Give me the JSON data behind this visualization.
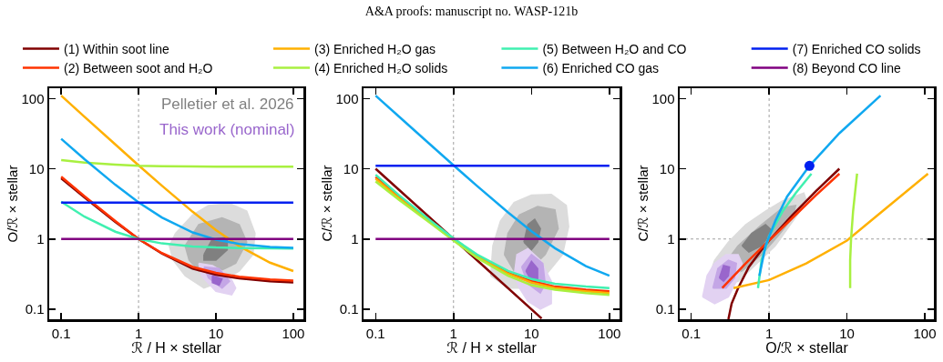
{
  "chart_data": [
    {
      "type": "line",
      "xlabel": "ℛ / H × stellar",
      "ylabel": "O/ℛ × stellar",
      "log": "xy",
      "grid": false,
      "legend": "top",
      "marker": "none",
      "line_style": "solid",
      "xlim": [
        0.07,
        135
      ],
      "ylim": [
        0.072,
        140
      ],
      "xticks": [
        0.1,
        1,
        10,
        100
      ],
      "yticks": [
        0.1,
        1,
        10,
        100
      ],
      "ref_lines": [
        {
          "axis": "x",
          "value": 1,
          "color": "#a0a0a0",
          "line_style": "dotted"
        }
      ],
      "x": [
        0.1,
        0.2,
        0.5,
        1,
        2,
        5,
        10,
        20,
        50,
        100
      ],
      "series": [
        {
          "type": "area",
          "color": "#dcdcdc",
          "x": [
            3,
            5,
            8,
            15,
            25,
            32,
            30,
            20,
            12,
            7,
            4,
            2.8,
            2.5,
            3
          ],
          "values": [
            1.2,
            2.2,
            3.0,
            3.2,
            2.5,
            1.2,
            0.6,
            0.35,
            0.25,
            0.2,
            0.3,
            0.5,
            0.8,
            1.2
          ]
        },
        {
          "type": "area",
          "color": "#b4b4b4",
          "x": [
            4,
            6,
            12,
            20,
            25,
            18,
            10,
            6,
            4.5,
            4
          ],
          "values": [
            0.8,
            1.6,
            2.0,
            1.6,
            0.9,
            0.45,
            0.33,
            0.35,
            0.5,
            0.8
          ]
        },
        {
          "type": "area",
          "name": "Pelletier et al. 2026",
          "color": "#808080",
          "x": [
            7,
            9,
            14,
            14,
            10,
            7,
            7
          ],
          "values": [
            0.6,
            1.0,
            1.05,
            0.7,
            0.5,
            0.5,
            0.6
          ]
        },
        {
          "type": "area",
          "color": "#e2d2f2",
          "x": [
            6,
            9,
            15,
            18,
            16,
            10,
            6.5,
            6
          ],
          "values": [
            0.45,
            0.42,
            0.3,
            0.2,
            0.16,
            0.18,
            0.3,
            0.45
          ]
        },
        {
          "type": "area",
          "color": "#c4a6e6",
          "x": [
            7,
            11,
            15,
            12,
            8,
            7
          ],
          "values": [
            0.4,
            0.38,
            0.25,
            0.2,
            0.28,
            0.4
          ]
        },
        {
          "type": "area",
          "name": "This work (nominal)",
          "color": "#9966cc",
          "x": [
            9,
            12,
            11,
            9,
            9
          ],
          "values": [
            0.3,
            0.27,
            0.22,
            0.24,
            0.3
          ]
        },
        {
          "name": "(1) Within soot line",
          "color": "#800000",
          "values": [
            7.3,
            3.9,
            1.75,
            1.0,
            0.62,
            0.38,
            0.31,
            0.275,
            0.25,
            0.24
          ]
        },
        {
          "name": "(2) Between soot and H₂O",
          "color": "#ff3300",
          "values": [
            7.7,
            4.05,
            1.8,
            1.0,
            0.63,
            0.4,
            0.33,
            0.29,
            0.265,
            0.255
          ]
        },
        {
          "name": "(3) Enriched H₂O gas",
          "color": "#ffb000",
          "values": [
            110,
            55,
            22.2,
            11.2,
            5.74,
            2.44,
            1.34,
            0.79,
            0.46,
            0.35
          ]
        },
        {
          "name": "(4) Enriched H₂O solids",
          "color": "#a8f040",
          "values": [
            13.3,
            12.2,
            11.4,
            11,
            10.85,
            10.76,
            10.73,
            10.72,
            10.71,
            10.7
          ]
        },
        {
          "name": "(5) Between H₂O and CO",
          "color": "#40f0b0",
          "values": [
            3.4,
            2.08,
            1.27,
            1.0,
            0.865,
            0.784,
            0.757,
            0.744,
            0.735,
            0.733
          ]
        },
        {
          "name": "(6) Enriched CO gas",
          "color": "#10a8f0",
          "values": [
            26.7,
            13.7,
            5.92,
            3.32,
            2.02,
            1.24,
            0.98,
            0.85,
            0.77,
            0.746
          ]
        },
        {
          "name": "(7) Enriched CO solids",
          "color": "#0020f0",
          "values": [
            3.3,
            3.3,
            3.3,
            3.3,
            3.3,
            3.3,
            3.3,
            3.3,
            3.3,
            3.3
          ]
        },
        {
          "name": "(8) Beyond CO line",
          "color": "#800080",
          "values": [
            1,
            1,
            1,
            1,
            1,
            1,
            1,
            1,
            1,
            1
          ]
        }
      ]
    },
    {
      "type": "line",
      "title": "A&A proofs: manuscript no. WASP-121b",
      "xlabel": "ℛ / H × stellar",
      "ylabel": "C/ℛ × stellar",
      "log": "xy",
      "grid": false,
      "legend": false,
      "marker": "none",
      "line_style": "solid",
      "xlim": [
        0.07,
        135
      ],
      "ylim": [
        0.072,
        140
      ],
      "xticks": [
        0.1,
        1,
        10,
        100
      ],
      "yticks": [
        0.1,
        1,
        10,
        100
      ],
      "ref_lines": [
        {
          "axis": "x",
          "value": 1,
          "color": "#a0a0a0",
          "line_style": "dotted"
        }
      ],
      "x": [
        0.1,
        0.2,
        0.5,
        1,
        2,
        5,
        10,
        20,
        50,
        100
      ],
      "series": [
        {
          "type": "area",
          "color": "#dcdcdc",
          "x": [
            3,
            3.2,
            4,
            6,
            10,
            18,
            28,
            30,
            25,
            15,
            8,
            5,
            3
          ],
          "values": [
            0.3,
            0.8,
            1.8,
            3.3,
            4.2,
            4.3,
            3.0,
            1.5,
            0.6,
            0.3,
            0.2,
            0.2,
            0.3
          ]
        },
        {
          "type": "area",
          "color": "#b4b4b4",
          "x": [
            4.5,
            5,
            7,
            12,
            20,
            22,
            15,
            9,
            6,
            4.5
          ],
          "values": [
            0.6,
            1.2,
            2.2,
            2.9,
            2.6,
            1.4,
            0.6,
            0.35,
            0.35,
            0.6
          ]
        },
        {
          "type": "area",
          "color": "#808080",
          "x": [
            8,
            9,
            11,
            13,
            12,
            10,
            8
          ],
          "values": [
            0.9,
            1.6,
            1.9,
            1.4,
            0.9,
            0.7,
            0.9
          ]
        },
        {
          "type": "area",
          "color": "#e2d2f2",
          "x": [
            6,
            6.5,
            9,
            13,
            18,
            18,
            13,
            9,
            7,
            6
          ],
          "values": [
            0.3,
            0.6,
            0.73,
            0.5,
            0.25,
            0.12,
            0.1,
            0.13,
            0.2,
            0.3
          ]
        },
        {
          "type": "area",
          "color": "#c4a6e6",
          "x": [
            7.5,
            10,
            14,
            15,
            13,
            9,
            7.5
          ],
          "values": [
            0.4,
            0.6,
            0.45,
            0.23,
            0.17,
            0.23,
            0.4
          ]
        },
        {
          "type": "area",
          "color": "#9966cc",
          "x": [
            8.5,
            10,
            12,
            12,
            10,
            8.5
          ],
          "values": [
            0.35,
            0.48,
            0.38,
            0.26,
            0.25,
            0.35
          ]
        },
        {
          "color": "#800000",
          "x": [
            0.1,
            1,
            13.5
          ],
          "values": [
            10,
            1,
            0.074
          ]
        },
        {
          "color": "#ff3300",
          "values": [
            7.6,
            4.0,
            1.8,
            1.0,
            0.58,
            0.33,
            0.25,
            0.21,
            0.19,
            0.18
          ]
        },
        {
          "color": "#ffb000",
          "values": [
            7.2,
            3.8,
            1.75,
            0.97,
            0.56,
            0.32,
            0.24,
            0.2,
            0.18,
            0.17
          ]
        },
        {
          "color": "#a8f040",
          "values": [
            6.6,
            3.6,
            1.7,
            0.95,
            0.54,
            0.3,
            0.22,
            0.19,
            0.17,
            0.16
          ]
        },
        {
          "color": "#40f0b0",
          "values": [
            8.2,
            4.2,
            1.85,
            1.02,
            0.6,
            0.35,
            0.27,
            0.23,
            0.21,
            0.2
          ]
        },
        {
          "color": "#10a8f0",
          "values": [
            110,
            55.2,
            22.2,
            11.2,
            5.69,
            2.39,
            1.29,
            0.74,
            0.41,
            0.3
          ]
        },
        {
          "color": "#0020f0",
          "values": [
            11,
            11,
            11,
            11,
            11,
            11,
            11,
            11,
            11,
            11
          ]
        },
        {
          "color": "#800080",
          "values": [
            1,
            1,
            1,
            1,
            1,
            1,
            1,
            1,
            1,
            1
          ]
        }
      ]
    },
    {
      "type": "line",
      "xlabel": "O/ℛ × stellar",
      "ylabel": "C/ℛ × stellar",
      "log": "xy",
      "grid": false,
      "legend": false,
      "marker": "none",
      "line_style": "solid",
      "xlim": [
        0.071,
        131
      ],
      "ylim": [
        0.072,
        140
      ],
      "xticks": [
        0.1,
        1,
        10,
        100
      ],
      "yticks": [
        0.1,
        1,
        10,
        100
      ],
      "ref_lines": [
        {
          "axis": "x",
          "value": 1,
          "color": "#a0a0a0",
          "line_style": "dotted"
        },
        {
          "axis": "y",
          "value": 1,
          "color": "#a0a0a0",
          "line_style": "dotted"
        }
      ],
      "series": [
        {
          "type": "area",
          "color": "#dcdcdc",
          "x": [
            0.17,
            0.2,
            0.3,
            0.5,
            0.9,
            1.5,
            2.8,
            3,
            2.5,
            1.8,
            1.2,
            0.7,
            0.4,
            0.25,
            0.17
          ],
          "values": [
            0.3,
            0.5,
            0.9,
            1.6,
            2.5,
            3.5,
            4.5,
            3.6,
            2.5,
            1.5,
            0.8,
            0.45,
            0.25,
            0.22,
            0.3
          ]
        },
        {
          "type": "area",
          "color": "#b4b4b4",
          "x": [
            0.25,
            0.4,
            0.8,
            1.5,
            2.2,
            2,
            1.3,
            0.8,
            0.45,
            0.3,
            0.25
          ],
          "values": [
            0.4,
            0.8,
            1.6,
            2.8,
            3.0,
            2.0,
            1.1,
            0.6,
            0.35,
            0.3,
            0.4
          ]
        },
        {
          "type": "area",
          "color": "#808080",
          "x": [
            0.45,
            0.6,
            0.9,
            1.1,
            0.8,
            0.55,
            0.45
          ],
          "values": [
            0.8,
            1.2,
            1.6,
            1.3,
            0.8,
            0.65,
            0.8
          ]
        },
        {
          "type": "area",
          "color": "#e2d2f2",
          "x": [
            0.14,
            0.16,
            0.2,
            0.28,
            0.4,
            0.45,
            0.38,
            0.3,
            0.2,
            0.14
          ],
          "values": [
            0.15,
            0.3,
            0.45,
            0.6,
            0.6,
            0.45,
            0.25,
            0.15,
            0.12,
            0.15
          ]
        },
        {
          "type": "area",
          "color": "#c4a6e6",
          "x": [
            0.19,
            0.22,
            0.3,
            0.38,
            0.36,
            0.28,
            0.19
          ],
          "values": [
            0.2,
            0.38,
            0.5,
            0.45,
            0.28,
            0.2,
            0.2
          ]
        },
        {
          "type": "area",
          "color": "#9966cc",
          "x": [
            0.23,
            0.26,
            0.31,
            0.3,
            0.26,
            0.23
          ],
          "values": [
            0.28,
            0.42,
            0.4,
            0.3,
            0.25,
            0.28
          ]
        },
        {
          "color": "#800000",
          "x": [
            0.3,
            0.33,
            0.4,
            0.55,
            0.8,
            1,
            2,
            4,
            8
          ],
          "values": [
            0.072,
            0.12,
            0.2,
            0.4,
            0.7,
            0.95,
            2.2,
            4.8,
            10
          ]
        },
        {
          "color": "#ff3300",
          "x": [
            0.25,
            0.5,
            1,
            2,
            4,
            8
          ],
          "values": [
            0.2,
            0.45,
            0.95,
            2,
            4.2,
            8.5
          ]
        },
        {
          "color": "#ffb000",
          "x": [
            0.35,
            1,
            3,
            10,
            30,
            110
          ],
          "values": [
            0.2,
            0.26,
            0.45,
            0.95,
            2.6,
            8.5
          ]
        },
        {
          "color": "#a8f040",
          "x": [
            11,
            11,
            11.3,
            12,
            13.5
          ],
          "values": [
            0.2,
            0.5,
            1,
            2.5,
            8.5
          ]
        },
        {
          "color": "#40f0b0",
          "x": [
            0.72,
            0.8,
            1,
            1.5,
            2.2,
            3.5
          ],
          "values": [
            0.2,
            0.5,
            1.1,
            2.5,
            4.5,
            8.5
          ]
        },
        {
          "color": "#10a8f0",
          "x": [
            0.75,
            0.9,
            1.2,
            1.7,
            3.3,
            8,
            27
          ],
          "values": [
            0.3,
            0.8,
            1.8,
            4,
            11,
            32,
            110
          ]
        },
        {
          "type": "scatter",
          "marker": "circle",
          "color": "#0020f0",
          "x": [
            3.3
          ],
          "values": [
            11
          ]
        }
      ]
    }
  ]
}
